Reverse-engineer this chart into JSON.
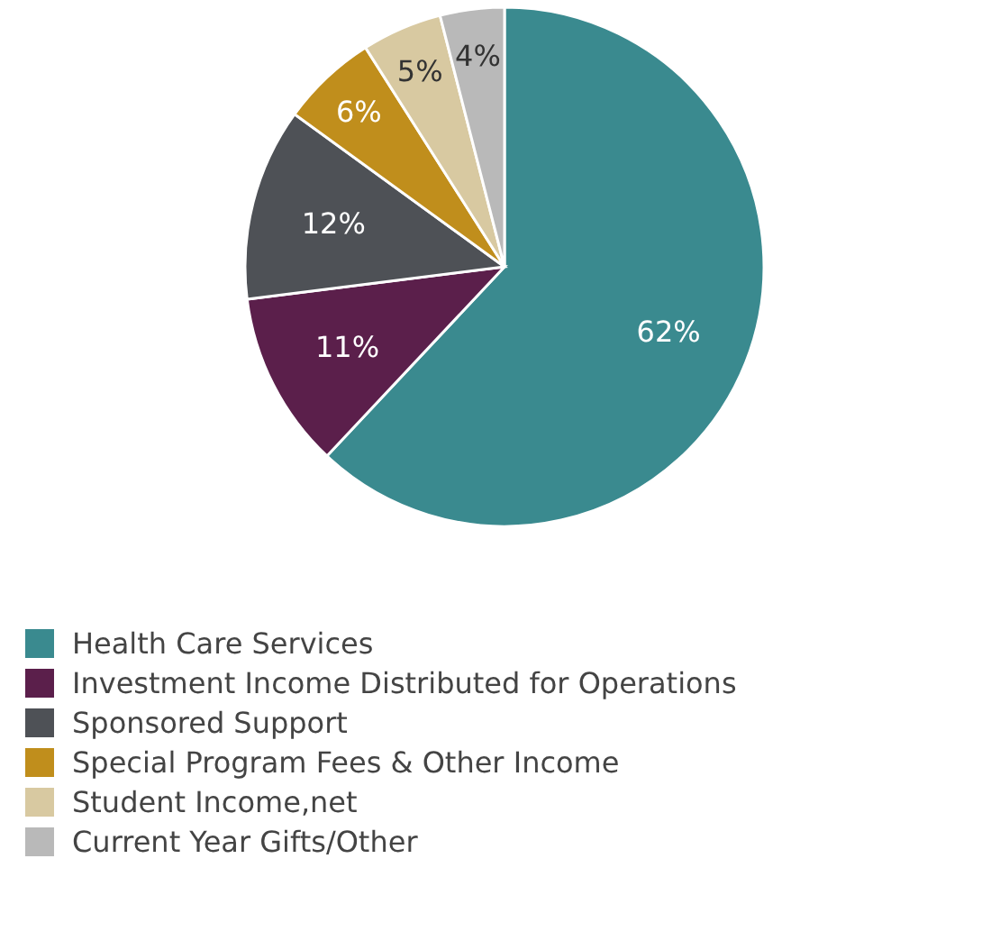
{
  "chart_data": {
    "type": "pie",
    "categories": [
      "Health Care Services",
      "Investment Income Distributed for Operations",
      "Sponsored Support",
      "Special Program Fees & Other Income",
      "Student Income,net",
      "Current Year Gifts/Other"
    ],
    "values": [
      62,
      11,
      12,
      6,
      5,
      4
    ],
    "colors": [
      "#3a8a8f",
      "#5b1f4b",
      "#4e5156",
      "#c08e1c",
      "#d8c9a1",
      "#b9b9b9"
    ],
    "value_labels": [
      "62%",
      "11%",
      "12%",
      "6%",
      "5%",
      "4%"
    ],
    "legend": "bottom"
  }
}
